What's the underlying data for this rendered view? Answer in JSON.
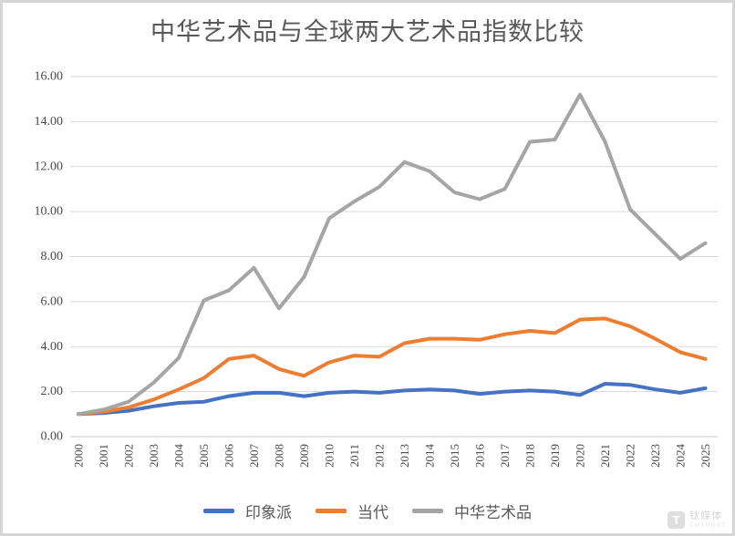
{
  "title": "中华艺术品与全球两大艺术品指数比较",
  "watermark": {
    "logo_letter": "T",
    "name_cn": "钛媒体",
    "name_en": "TMTPOST"
  },
  "chart_data": {
    "type": "line",
    "title": "中华艺术品与全球两大艺术品指数比较",
    "xlabel": "",
    "ylabel": "",
    "x": [
      2000,
      2001,
      2002,
      2003,
      2004,
      2005,
      2006,
      2007,
      2008,
      2009,
      2010,
      2011,
      2012,
      2013,
      2014,
      2015,
      2016,
      2017,
      2018,
      2019,
      2020,
      2021,
      2022,
      2023,
      2024,
      2025
    ],
    "ylim": [
      0,
      16
    ],
    "yticks": [
      0,
      2,
      4,
      6,
      8,
      10,
      12,
      14,
      16
    ],
    "ytick_decimals": 2,
    "grid": true,
    "legend_position": "bottom",
    "x_labels_rotated_degrees": 90,
    "gridline_color": "#d9d9d9",
    "axis_text_color": "#4a4a4a",
    "series": [
      {
        "name": "印象派",
        "color": "#4472C4",
        "values": [
          1.0,
          1.05,
          1.15,
          1.35,
          1.5,
          1.55,
          1.8,
          1.95,
          1.95,
          1.8,
          1.95,
          2.0,
          1.95,
          2.05,
          2.1,
          2.05,
          1.9,
          2.0,
          2.05,
          2.0,
          1.85,
          2.35,
          2.3,
          2.1,
          1.95,
          2.15
        ]
      },
      {
        "name": "当代",
        "color": "#ED7D31",
        "values": [
          1.0,
          1.1,
          1.3,
          1.65,
          2.1,
          2.6,
          3.45,
          3.6,
          3.0,
          2.7,
          3.3,
          3.6,
          3.55,
          4.15,
          4.35,
          4.35,
          4.3,
          4.55,
          4.7,
          4.6,
          5.2,
          5.25,
          4.9,
          4.35,
          3.75,
          3.45
        ]
      },
      {
        "name": "中华艺术品",
        "color": "#A5A5A5",
        "values": [
          1.0,
          1.2,
          1.55,
          2.4,
          3.5,
          6.05,
          6.5,
          7.5,
          5.7,
          7.1,
          9.7,
          10.45,
          11.1,
          12.2,
          11.8,
          10.85,
          10.55,
          11.0,
          13.1,
          13.2,
          15.2,
          13.1,
          10.1,
          9.0,
          7.9,
          8.6
        ]
      }
    ]
  }
}
